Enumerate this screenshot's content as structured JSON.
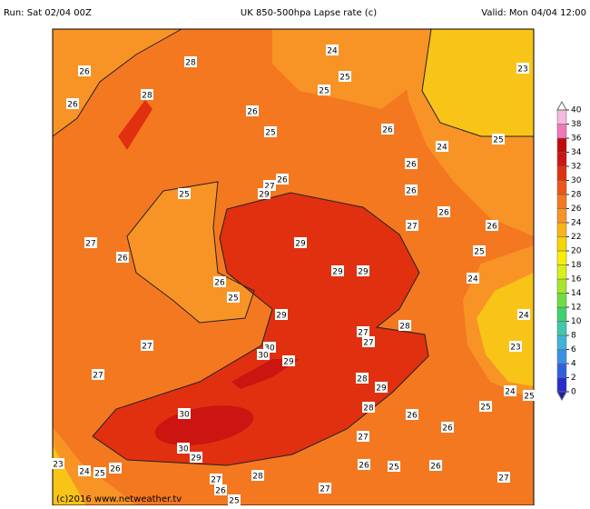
{
  "header": {
    "run": "Run: Sat 02/04 00Z",
    "title": "UK 850-500hpa Lapse rate (c)",
    "valid": "Valid: Mon 04/04 12:00"
  },
  "footer": "(c)2016 www.netweather.tv",
  "colorbar": {
    "ylim": [
      0,
      40
    ],
    "yticks": [
      0,
      2,
      4,
      6,
      8,
      10,
      12,
      14,
      16,
      18,
      20,
      22,
      24,
      26,
      28,
      30,
      32,
      34,
      36,
      38,
      40
    ],
    "colors": [
      "#2a2ad0",
      "#3060e0",
      "#3c90e6",
      "#40b4d8",
      "#40c8a8",
      "#40d070",
      "#70dc40",
      "#a8e628",
      "#d8f018",
      "#f8f000",
      "#f8d400",
      "#f8b418",
      "#f89426",
      "#f47820",
      "#f05418",
      "#e03010",
      "#d01410",
      "#c00c0c",
      "#f078b8",
      "#f8b8e0"
    ]
  },
  "labels": [
    28,
    26,
    26,
    28,
    24,
    25,
    25,
    26,
    25,
    26,
    23,
    25,
    24,
    26,
    26,
    27,
    29,
    25,
    26,
    27,
    26,
    26,
    26,
    27,
    29,
    29,
    29,
    26,
    25,
    25,
    24,
    29,
    28,
    27,
    27,
    27,
    30,
    30,
    29,
    27,
    28,
    29,
    28,
    26,
    26,
    25,
    24,
    25,
    30,
    30,
    29,
    27,
    26,
    25,
    26,
    27,
    28,
    27,
    26,
    25,
    23,
    24,
    25,
    26,
    27,
    23,
    24
  ]
}
